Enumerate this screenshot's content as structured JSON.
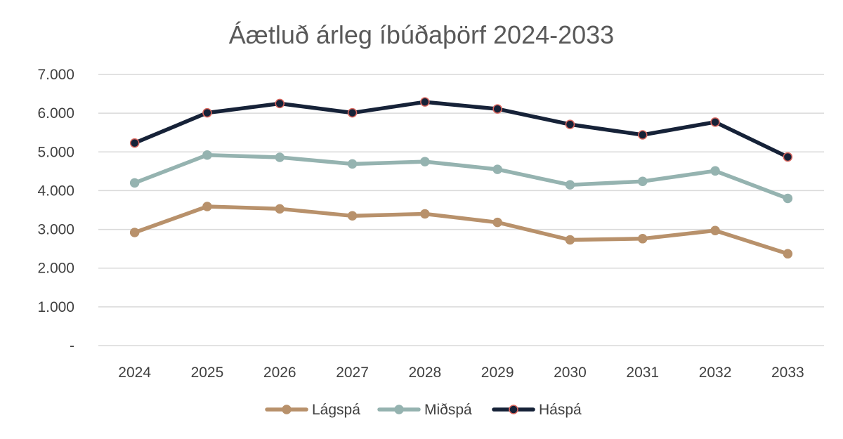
{
  "chart_data": {
    "type": "line",
    "title": "Áætluð árleg íbúðaþörf 2024-2033",
    "xlabel": "",
    "ylabel": "",
    "categories": [
      "2024",
      "2025",
      "2026",
      "2027",
      "2028",
      "2029",
      "2030",
      "2031",
      "2032",
      "2033"
    ],
    "ylim": [
      0,
      7000
    ],
    "yticks": [
      0,
      1000,
      2000,
      3000,
      4000,
      5000,
      6000,
      7000
    ],
    "ytick_labels": [
      "-",
      "1.000",
      "2.000",
      "3.000",
      "4.000",
      "5.000",
      "6.000",
      "7.000"
    ],
    "grid": true,
    "legend_position": "bottom",
    "series": [
      {
        "name": "Lágspá",
        "color": "#b8916b",
        "marker_fill": "#b8916b",
        "marker_stroke": "#b8916b",
        "values": [
          2920,
          3590,
          3530,
          3350,
          3400,
          3180,
          2730,
          2760,
          2970,
          2370
        ]
      },
      {
        "name": "Miðspá",
        "color": "#95b3b0",
        "marker_fill": "#95b3b0",
        "marker_stroke": "#95b3b0",
        "values": [
          4200,
          4920,
          4860,
          4690,
          4750,
          4550,
          4150,
          4240,
          4510,
          3800
        ]
      },
      {
        "name": "Háspá",
        "color": "#162238",
        "marker_fill": "#162238",
        "marker_stroke": "#d9665e",
        "values": [
          5230,
          6010,
          6250,
          6010,
          6290,
          6110,
          5710,
          5440,
          5770,
          4870
        ]
      }
    ]
  }
}
